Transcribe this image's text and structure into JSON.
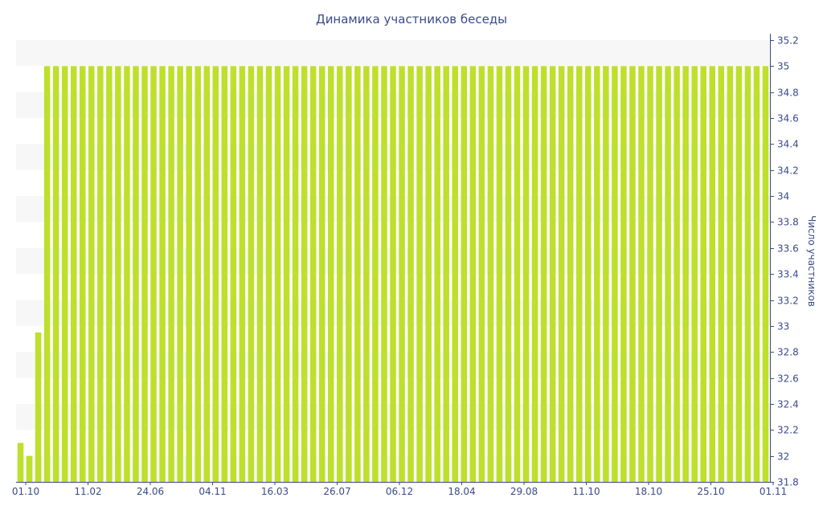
{
  "chart_data": {
    "type": "bar",
    "title": "Динамика участников беседы",
    "xlabel": "",
    "ylabel": "Число участников",
    "ylim": [
      31.8,
      35.2
    ],
    "yticks": [
      31.8,
      32,
      32.2,
      32.4,
      32.6,
      32.8,
      33,
      33.2,
      33.4,
      33.6,
      33.8,
      34,
      34.2,
      34.4,
      34.6,
      34.8,
      35,
      35.2
    ],
    "xtick_labels": [
      "01.10",
      "11.02",
      "24.06",
      "04.11",
      "16.03",
      "26.07",
      "06.12",
      "18.04",
      "29.08",
      "11.10",
      "18.10",
      "25.10",
      "01.11"
    ],
    "bar_color": "#bedf2b",
    "band_color": "#f7f7f7",
    "axis_color": "#3a4a8a",
    "grid": false,
    "legend": "none",
    "values": [
      32.1,
      32.0,
      32.95,
      35,
      35,
      35,
      35,
      35,
      35,
      35,
      35,
      35,
      35,
      35,
      35,
      35,
      35,
      35,
      35,
      35,
      35,
      35,
      35,
      35,
      35,
      35,
      35,
      35,
      35,
      35,
      35,
      35,
      35,
      35,
      35,
      35,
      35,
      35,
      35,
      35,
      35,
      35,
      35,
      35,
      35,
      35,
      35,
      35,
      35,
      35,
      35,
      35,
      35,
      35,
      35,
      35,
      35,
      35,
      35,
      35,
      35,
      35,
      35,
      35,
      35,
      35,
      35,
      35,
      35,
      35,
      35,
      35,
      35,
      35,
      35,
      35,
      35,
      35,
      35,
      35,
      35,
      35,
      35,
      35,
      35
    ]
  }
}
